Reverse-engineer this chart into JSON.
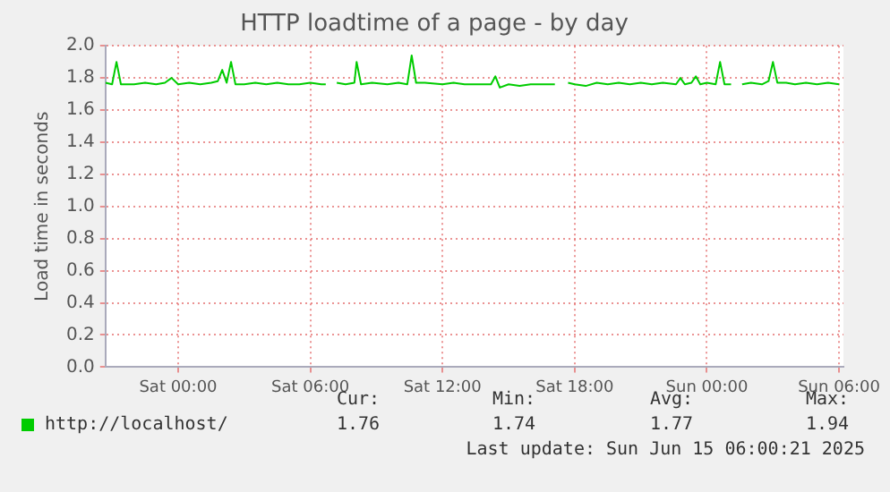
{
  "chart_data": {
    "type": "line",
    "title": "HTTP loadtime of a page - by day",
    "ylabel": "Load time in seconds",
    "x": [
      "2025-06-13T20:42",
      "2025-06-13T21:00",
      "2025-06-13T21:12",
      "2025-06-13T21:24",
      "2025-06-13T22:00",
      "2025-06-13T22:30",
      "2025-06-13T23:00",
      "2025-06-13T23:24",
      "2025-06-13T23:42",
      "2025-06-14T00:00",
      "2025-06-14T00:30",
      "2025-06-14T01:00",
      "2025-06-14T01:30",
      "2025-06-14T01:48",
      "2025-06-14T02:00",
      "2025-06-14T02:12",
      "2025-06-14T02:24",
      "2025-06-14T02:36",
      "2025-06-14T03:00",
      "2025-06-14T03:30",
      "2025-06-14T04:00",
      "2025-06-14T04:30",
      "2025-06-14T05:00",
      "2025-06-14T05:30",
      "2025-06-14T06:00",
      "2025-06-14T06:30",
      "2025-06-14T06:42",
      "2025-06-14T06:54",
      "2025-06-14T07:12",
      "2025-06-14T07:36",
      "2025-06-14T08:00",
      "2025-06-14T08:06",
      "2025-06-14T08:18",
      "2025-06-14T08:48",
      "2025-06-14T09:30",
      "2025-06-14T10:00",
      "2025-06-14T10:24",
      "2025-06-14T10:36",
      "2025-06-14T10:48",
      "2025-06-14T11:12",
      "2025-06-14T12:00",
      "2025-06-14T12:30",
      "2025-06-14T13:00",
      "2025-06-14T13:30",
      "2025-06-14T14:12",
      "2025-06-14T14:24",
      "2025-06-14T14:36",
      "2025-06-14T15:00",
      "2025-06-14T15:30",
      "2025-06-14T16:00",
      "2025-06-14T16:30",
      "2025-06-14T17:06",
      "2025-06-14T17:24",
      "2025-06-14T17:42",
      "2025-06-14T18:00",
      "2025-06-14T18:30",
      "2025-06-14T19:00",
      "2025-06-14T19:30",
      "2025-06-14T20:00",
      "2025-06-14T20:30",
      "2025-06-14T21:00",
      "2025-06-14T21:30",
      "2025-06-14T22:00",
      "2025-06-14T22:36",
      "2025-06-14T22:48",
      "2025-06-14T23:00",
      "2025-06-14T23:18",
      "2025-06-14T23:30",
      "2025-06-14T23:42",
      "2025-06-15T00:00",
      "2025-06-15T00:24",
      "2025-06-15T00:36",
      "2025-06-15T00:48",
      "2025-06-15T01:06",
      "2025-06-15T01:21",
      "2025-06-15T01:36",
      "2025-06-15T02:00",
      "2025-06-15T02:30",
      "2025-06-15T02:48",
      "2025-06-15T03:00",
      "2025-06-15T03:12",
      "2025-06-15T03:36",
      "2025-06-15T04:00",
      "2025-06-15T04:30",
      "2025-06-15T05:00",
      "2025-06-15T05:30",
      "2025-06-15T06:00"
    ],
    "series": [
      {
        "name": "http://localhost/",
        "color": "#00cc00",
        "values": [
          1.77,
          1.76,
          1.9,
          1.76,
          1.76,
          1.77,
          1.76,
          1.77,
          1.8,
          1.76,
          1.77,
          1.76,
          1.77,
          1.78,
          1.85,
          1.77,
          1.9,
          1.76,
          1.76,
          1.77,
          1.76,
          1.77,
          1.76,
          1.76,
          1.77,
          1.76,
          1.76,
          null,
          1.77,
          1.76,
          1.77,
          1.9,
          1.76,
          1.77,
          1.76,
          1.77,
          1.76,
          1.94,
          1.77,
          1.77,
          1.76,
          1.77,
          1.76,
          1.76,
          1.76,
          1.81,
          1.74,
          1.76,
          1.75,
          1.76,
          1.76,
          1.76,
          null,
          1.77,
          1.76,
          1.75,
          1.77,
          1.76,
          1.77,
          1.76,
          1.77,
          1.76,
          1.77,
          1.76,
          1.8,
          1.76,
          1.77,
          1.81,
          1.76,
          1.77,
          1.76,
          1.9,
          1.76,
          1.76,
          null,
          1.76,
          1.77,
          1.76,
          1.78,
          1.9,
          1.77,
          1.77,
          1.76,
          1.77,
          1.76,
          1.77,
          1.76
        ]
      }
    ],
    "xlim": [
      "2025-06-13T20:42",
      "2025-06-15T06:12"
    ],
    "xticks": [
      {
        "value": "2025-06-14T00:00",
        "label": "Sat 00:00"
      },
      {
        "value": "2025-06-14T06:00",
        "label": "Sat 06:00"
      },
      {
        "value": "2025-06-14T12:00",
        "label": "Sat 12:00"
      },
      {
        "value": "2025-06-14T18:00",
        "label": "Sat 18:00"
      },
      {
        "value": "2025-06-15T00:00",
        "label": "Sun 00:00"
      },
      {
        "value": "2025-06-15T06:00",
        "label": "Sun 06:00"
      }
    ],
    "ylim": [
      0,
      2
    ],
    "yticks": [
      {
        "value": 0,
        "label": "0.0"
      },
      0.2,
      0.4,
      0.6,
      0.8,
      {
        "value": 1,
        "label": "1.0"
      },
      1.2,
      1.4,
      1.6,
      1.8,
      {
        "value": 2,
        "label": "2.0"
      }
    ],
    "grid": true,
    "legend": "bottom left",
    "marker": "none",
    "line_style": "solid",
    "annotations": [
      "Cur:",
      "Min:",
      "Avg:",
      "Max:",
      "1.76",
      "1.74",
      "1.77",
      "1.94",
      "Last update: Sun Jun 15 06:00:21 2025"
    ]
  }
}
